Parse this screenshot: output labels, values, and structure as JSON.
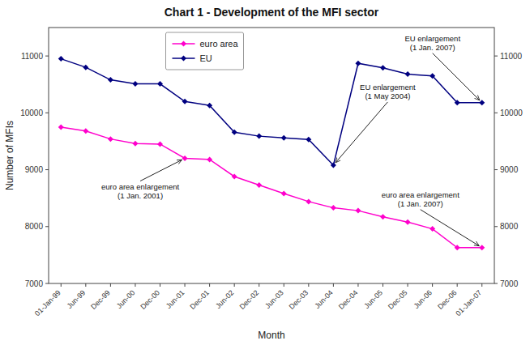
{
  "chart_data": {
    "type": "line",
    "title": "Chart 1 - Development of the MFI sector",
    "x_label": "Month",
    "y_label": "Number of MFIs",
    "categories": [
      "01-Jan-99",
      "Jun-99",
      "Dec-99",
      "Jun-00",
      "Dec-00",
      "Jun-01",
      "Dec-01",
      "Jun-02",
      "Dec-02",
      "Jun-03",
      "Dec-03",
      "Jun-04",
      "Dec-04",
      "Jun-05",
      "Dec-05",
      "Jun-06",
      "Dec-06",
      "01-Jan-07"
    ],
    "series": [
      {
        "name": "euro area",
        "color": "#ff00cc",
        "marker": "diamond",
        "values": [
          9750,
          9680,
          9540,
          9460,
          9450,
          9200,
          9180,
          8880,
          8730,
          8580,
          8440,
          8330,
          8280,
          8170,
          8080,
          7960,
          7630,
          7630
        ]
      },
      {
        "name": "EU",
        "color": "#000080",
        "marker": "diamond",
        "values": [
          10950,
          10800,
          10580,
          10510,
          10510,
          10200,
          10130,
          9660,
          9590,
          9560,
          9530,
          9080,
          10870,
          10790,
          10680,
          10650,
          10180,
          10180
        ]
      }
    ],
    "ylim": [
      7000,
      11500
    ],
    "yticks": [
      7000,
      8000,
      9000,
      10000,
      11000
    ],
    "y2lim": [
      7000,
      11500
    ],
    "y2ticks": [
      7000,
      8000,
      9000,
      10000,
      11000
    ],
    "grid": false,
    "legend": "upper center",
    "annotations": [
      {
        "text": "euro area enlargement\n(1 Jan. 2001)",
        "series": "euro area",
        "category": "Jun-01"
      },
      {
        "text": "EU enlargement\n(1 May 2004)",
        "series": "EU",
        "category": "Jun-04"
      },
      {
        "text": "EU enlargement\n(1 Jan. 2007)",
        "series": "EU",
        "category": "01-Jan-07"
      },
      {
        "text": "euro area enlargement\n(1 Jan. 2007)",
        "series": "euro area",
        "category": "01-Jan-07"
      }
    ]
  }
}
